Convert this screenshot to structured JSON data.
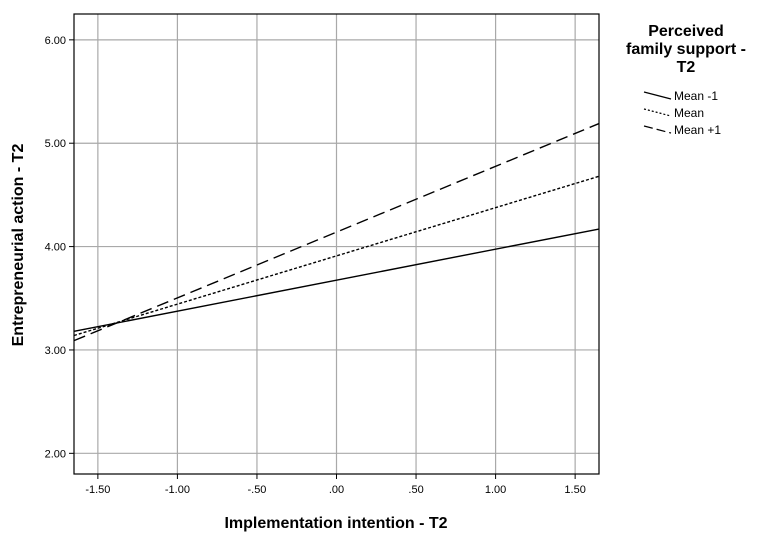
{
  "chart_data": {
    "type": "line",
    "xlabel": "Implementation intention - T2",
    "ylabel": "Entrepreneurial action - T2",
    "xlim": [
      -1.65,
      1.65
    ],
    "ylim": [
      1.8,
      6.25
    ],
    "x_ticks": [
      -1.5,
      -1.0,
      -0.5,
      0.0,
      0.5,
      1.0,
      1.5
    ],
    "x_tick_labels": [
      "-1.50",
      "-1.00",
      "-.50",
      ".00",
      ".50",
      "1.00",
      "1.50"
    ],
    "y_ticks": [
      2,
      3,
      4,
      5,
      6
    ],
    "y_tick_labels": [
      "2.00",
      "3.00",
      "4.00",
      "5.00",
      "6.00"
    ],
    "grid": true,
    "legend": {
      "title_lines": [
        "Perceived",
        "family support -",
        "T2"
      ],
      "placement": "right"
    },
    "series": [
      {
        "name": "Mean -1",
        "style": "solid",
        "x": [
          -1.65,
          1.65
        ],
        "y": [
          3.18,
          4.17
        ]
      },
      {
        "name": "Mean",
        "style": "dotted",
        "x": [
          -1.65,
          1.65
        ],
        "y": [
          3.14,
          4.68
        ]
      },
      {
        "name": "Mean +1",
        "style": "dashed",
        "x": [
          -1.65,
          1.65
        ],
        "y": [
          3.09,
          5.19
        ]
      }
    ],
    "colors": {
      "line": "#000000",
      "grid": "#a9a9a9",
      "frame": "#000000"
    }
  }
}
